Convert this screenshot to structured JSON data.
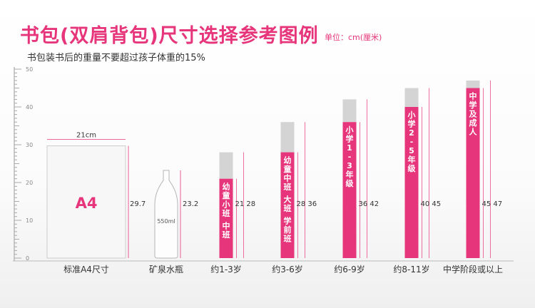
{
  "header": {
    "title": "书包(双肩背包)尺寸选择参考图例",
    "unit": "单位：cm(厘米)",
    "subtitle": "书包装书后的重量不要超过孩子体重的15%"
  },
  "colors": {
    "accent": "#e6357a",
    "bar": "#e6357a",
    "bar_top": "#d4d4d4",
    "ruler": "#aaaaaa",
    "text": "#333333"
  },
  "reference": {
    "a4": {
      "label": "A4",
      "width_label": "21cm",
      "height_label": "29.7",
      "height_cm": 29.7
    },
    "bottle": {
      "volume_label": "550ml",
      "height_label": "23.2",
      "height_cm": 23.2
    }
  },
  "chart_data": {
    "type": "bar",
    "ylim": [
      0,
      50
    ],
    "yticks": [
      0,
      10,
      20,
      30,
      40,
      50
    ],
    "categories": [
      "标准A4尺寸",
      "矿泉水瓶",
      "约1-3岁",
      "约3-6岁",
      "约6-9岁",
      "约8-11岁",
      "中学阶段或以上"
    ],
    "bars": [
      {
        "category": "约1-3岁",
        "min": 21,
        "max": 28,
        "range_label": "21  28",
        "inner_label": "幼童小班 中班"
      },
      {
        "category": "约3-6岁",
        "min": 28,
        "max": 36,
        "range_label": "28  36",
        "inner_label": "幼童中班 大班 学前班"
      },
      {
        "category": "约6-9岁",
        "min": 36,
        "max": 42,
        "range_label": "36  42",
        "inner_label": "小学1-3年级"
      },
      {
        "category": "约8-11岁",
        "min": 40,
        "max": 45,
        "range_label": "40  45",
        "inner_label": "小学2-5年级"
      },
      {
        "category": "中学阶段或以上",
        "min": 45,
        "max": 47,
        "range_label": "45  47",
        "inner_label": "中学及成人"
      }
    ]
  }
}
